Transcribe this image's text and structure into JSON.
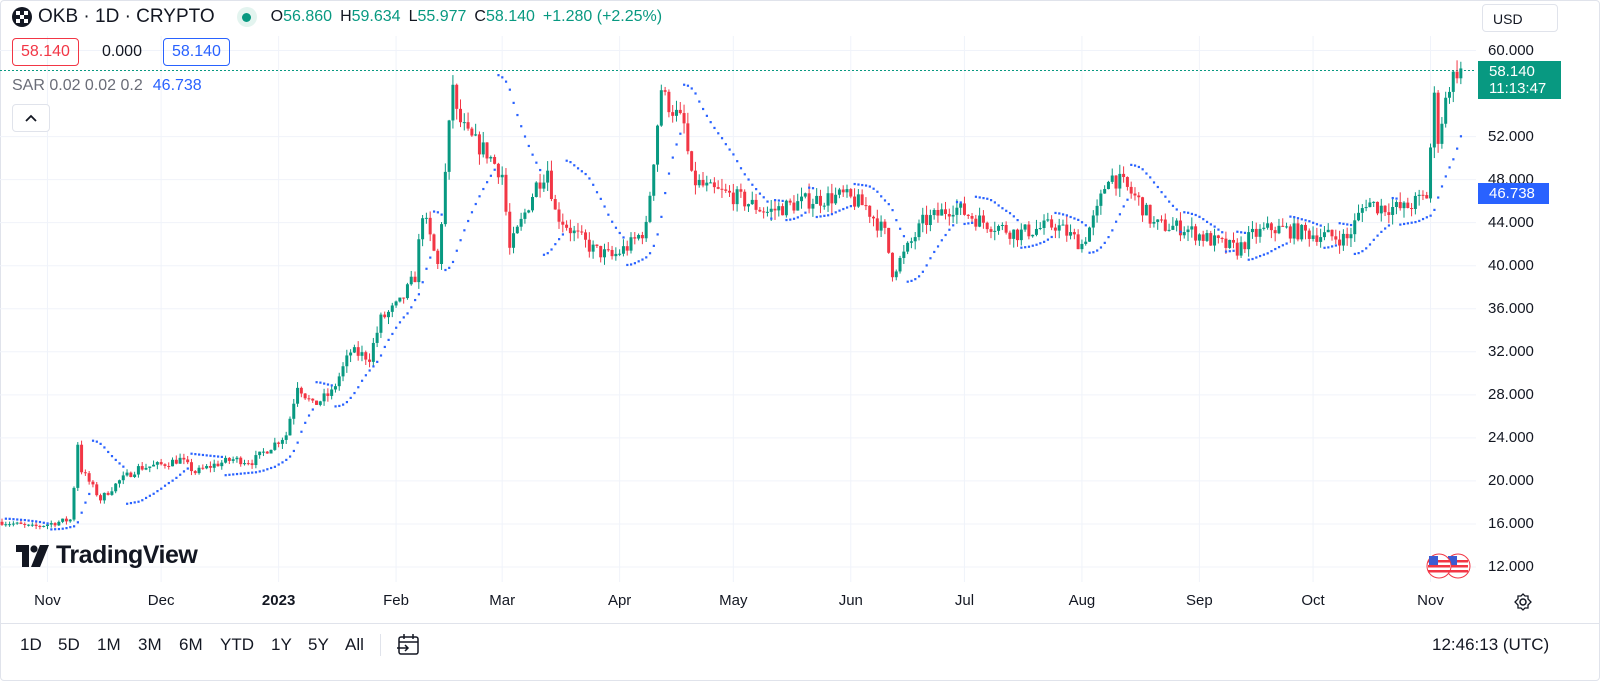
{
  "header": {
    "symbol": "OKB · 1D · CRYPTO",
    "o_label": "O",
    "o": "56.860",
    "h_label": "H",
    "h": "59.634",
    "l_label": "L",
    "l": "55.977",
    "c_label": "C",
    "c": "58.140",
    "change": "+1.280 (+2.25%)",
    "bid": "58.140",
    "spread": "0.000",
    "ask": "58.140",
    "indicator": "SAR 0.02 0.02 0.2",
    "indicator_value": "46.738"
  },
  "currency": "USD",
  "price_tag": {
    "price": "58.140",
    "countdown": "11:13:47"
  },
  "sar_tag": "46.738",
  "y_ticks": [
    "60.000",
    "52.000",
    "48.000",
    "44.000",
    "40.000",
    "36.000",
    "32.000",
    "28.000",
    "24.000",
    "20.000",
    "16.000",
    "12.000"
  ],
  "x_ticks": [
    {
      "label": "Nov",
      "bold": false
    },
    {
      "label": "Dec",
      "bold": false
    },
    {
      "label": "2023",
      "bold": true
    },
    {
      "label": "Feb",
      "bold": false
    },
    {
      "label": "Mar",
      "bold": false
    },
    {
      "label": "Apr",
      "bold": false
    },
    {
      "label": "May",
      "bold": false
    },
    {
      "label": "Jun",
      "bold": false
    },
    {
      "label": "Jul",
      "bold": false
    },
    {
      "label": "Aug",
      "bold": false
    },
    {
      "label": "Sep",
      "bold": false
    },
    {
      "label": "Oct",
      "bold": false
    },
    {
      "label": "Nov",
      "bold": false
    }
  ],
  "brand": "TradingView",
  "ranges": [
    "1D",
    "5D",
    "1M",
    "3M",
    "6M",
    "YTD",
    "1Y",
    "5Y",
    "All"
  ],
  "clock": "12:46:13 (UTC)",
  "colors": {
    "up": "#089981",
    "down": "#f23645",
    "sar": "#2962ff",
    "grid": "#f0f3fa"
  },
  "chart_data": {
    "type": "candlestick",
    "title": "OKB · 1D · CRYPTO",
    "y_range": [
      12,
      60
    ],
    "x_range": [
      "2022-10-20",
      "2023-11-13"
    ],
    "grid": true,
    "series": [
      {
        "name": "OKB",
        "kind": "ohlc_keypoints_close",
        "x": [
          "2022-10-20",
          "2022-10-28",
          "2022-11-07",
          "2022-11-08",
          "2022-11-09",
          "2022-11-10",
          "2022-11-15",
          "2022-11-20",
          "2022-11-25",
          "2022-12-01",
          "2022-12-06",
          "2022-12-10",
          "2022-12-15",
          "2022-12-20",
          "2022-12-25",
          "2022-12-30",
          "2023-01-03",
          "2023-01-06",
          "2023-01-10",
          "2023-01-15",
          "2023-01-20",
          "2023-01-25",
          "2023-01-28",
          "2023-02-02",
          "2023-02-06",
          "2023-02-08",
          "2023-02-12",
          "2023-02-16",
          "2023-02-17",
          "2023-02-20",
          "2023-02-25",
          "2023-03-01",
          "2023-03-03",
          "2023-03-06",
          "2023-03-10",
          "2023-03-13",
          "2023-03-15",
          "2023-03-20",
          "2023-03-25",
          "2023-03-30",
          "2023-04-04",
          "2023-04-08",
          "2023-04-12",
          "2023-04-13",
          "2023-04-18",
          "2023-04-20",
          "2023-04-25",
          "2023-05-01",
          "2023-05-10",
          "2023-05-20",
          "2023-05-30",
          "2023-06-05",
          "2023-06-10",
          "2023-06-12",
          "2023-06-15",
          "2023-06-20",
          "2023-06-28",
          "2023-07-05",
          "2023-07-15",
          "2023-07-25",
          "2023-08-01",
          "2023-08-05",
          "2023-08-08",
          "2023-08-12",
          "2023-08-16",
          "2023-08-20",
          "2023-08-28",
          "2023-09-05",
          "2023-09-11",
          "2023-09-15",
          "2023-09-20",
          "2023-09-30",
          "2023-10-10",
          "2023-10-15",
          "2023-10-18",
          "2023-10-25",
          "2023-10-31",
          "2023-11-02",
          "2023-11-03",
          "2023-11-06",
          "2023-11-08",
          "2023-11-09"
        ],
        "close": [
          16.2,
          15.7,
          16.4,
          19.5,
          23.5,
          21.0,
          18.3,
          20.0,
          21.2,
          21.5,
          22.0,
          20.8,
          21.5,
          22.0,
          21.8,
          23.2,
          24.3,
          29.0,
          27.0,
          28.2,
          32.0,
          31.5,
          35.0,
          36.5,
          39.0,
          45.0,
          40.0,
          57.0,
          54.0,
          52.0,
          50.5,
          48.5,
          41.5,
          44.0,
          47.5,
          49.0,
          45.0,
          43.0,
          41.5,
          40.8,
          42.0,
          43.5,
          56.5,
          55.5,
          53.0,
          48.0,
          47.0,
          46.5,
          45.0,
          46.0,
          46.5,
          45.5,
          43.0,
          39.5,
          41.0,
          44.0,
          45.5,
          44.2,
          43.0,
          43.8,
          42.0,
          45.0,
          48.5,
          47.5,
          46.0,
          43.8,
          43.5,
          42.2,
          41.5,
          42.8,
          43.5,
          43.0,
          42.5,
          46.0,
          45.5,
          45.3,
          46.5,
          55.5,
          52.0,
          56.9,
          58.14,
          58.14
        ]
      },
      {
        "name": "SAR",
        "kind": "indicator",
        "parameters": "0.02 0.02 0.2",
        "last": 46.738
      }
    ],
    "last": {
      "open": 56.86,
      "high": 59.634,
      "low": 55.977,
      "close": 58.14,
      "change": 1.28,
      "change_pct": 2.25
    }
  }
}
